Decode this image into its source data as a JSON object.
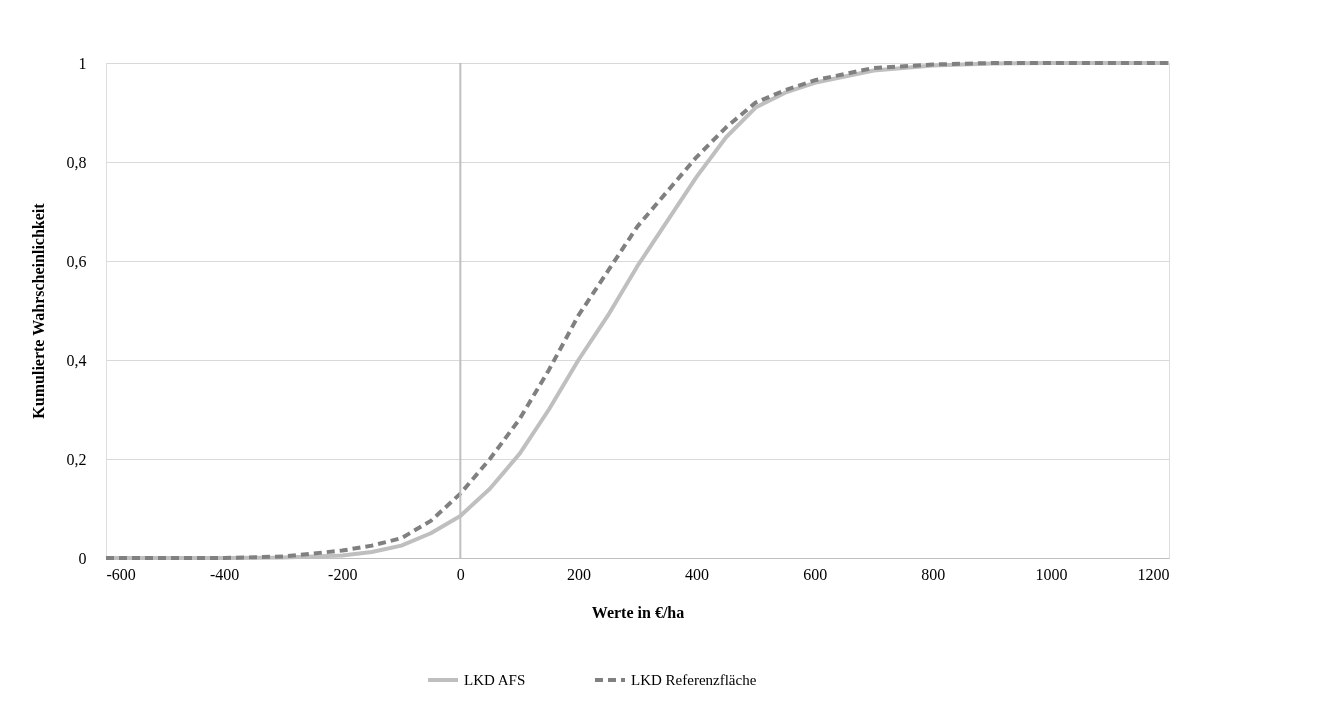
{
  "chart_data": {
    "type": "line",
    "xlabel": "Werte in €/ha",
    "ylabel": "Kumulierte Wahrscheinlichkeit",
    "xlim": [
      -600,
      1200
    ],
    "xticks": [
      -600,
      -400,
      -200,
      0,
      200,
      400,
      600,
      800,
      1000,
      1200
    ],
    "ylim": [
      0,
      1
    ],
    "yticks": [
      0,
      {
        "value": 0.2,
        "label": "0,2"
      },
      {
        "value": 0.4,
        "label": "0,4"
      },
      {
        "value": 0.6,
        "label": "0,6"
      },
      {
        "value": 0.8,
        "label": "0,8"
      },
      1
    ],
    "grid": "y",
    "legend": "bottom",
    "marker": "none",
    "ref_lines": [
      {
        "axis": "x",
        "value": 0,
        "color": "#bfbfbf"
      }
    ],
    "x": [
      -600,
      -400,
      -300,
      -200,
      -150,
      -100,
      -50,
      0,
      50,
      100,
      150,
      200,
      250,
      300,
      350,
      400,
      450,
      500,
      550,
      600,
      700,
      800,
      900,
      1000,
      1200
    ],
    "series": [
      {
        "name": "LKD AFS",
        "color": "#bfbfbf",
        "line_style": "solid",
        "values": [
          0,
          0,
          0.001,
          0.005,
          0.012,
          0.025,
          0.05,
          0.085,
          0.14,
          0.21,
          0.3,
          0.4,
          0.49,
          0.59,
          0.68,
          0.77,
          0.85,
          0.91,
          0.94,
          0.96,
          0.985,
          0.995,
          0.999,
          1,
          1
        ]
      },
      {
        "name": "LKD Referenzfläche",
        "color": "#808080",
        "line_style": "dashed",
        "values": [
          0,
          0,
          0.003,
          0.015,
          0.025,
          0.04,
          0.075,
          0.13,
          0.2,
          0.28,
          0.38,
          0.49,
          0.58,
          0.67,
          0.74,
          0.81,
          0.87,
          0.92,
          0.945,
          0.965,
          0.99,
          0.997,
          1,
          1,
          1
        ]
      }
    ]
  }
}
